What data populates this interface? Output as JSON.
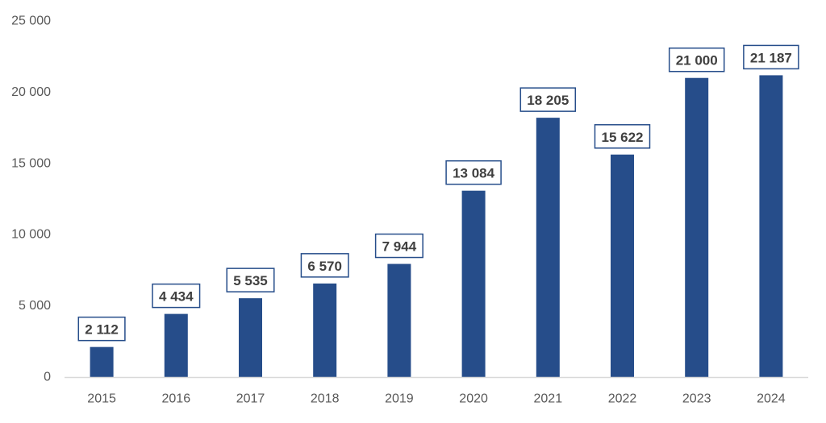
{
  "colors": {
    "bar": "#264D8A",
    "label_border": "#264D8A",
    "axis_line": "#D9D9D9",
    "tick_text": "#595959",
    "label_text": "#404040"
  },
  "chart_data": {
    "type": "bar",
    "title": "",
    "xlabel": "",
    "ylabel": "",
    "categories": [
      "2015",
      "2016",
      "2017",
      "2018",
      "2019",
      "2020",
      "2021",
      "2022",
      "2023",
      "2024"
    ],
    "values": [
      2112,
      4434,
      5535,
      6570,
      7944,
      13084,
      18205,
      15622,
      21000,
      21187
    ],
    "value_labels": [
      "2 112",
      "4 434",
      "5 535",
      "6 570",
      "7 944",
      "13 084",
      "18 205",
      "15 622",
      "21 000",
      "21 187"
    ],
    "ylim": [
      0,
      25000
    ],
    "yticks": [
      0,
      5000,
      10000,
      15000,
      20000,
      25000
    ],
    "ytick_labels": [
      "0",
      "5 000",
      "10 000",
      "15 000",
      "20 000",
      "25 000"
    ],
    "grid": false,
    "legend": "none"
  }
}
